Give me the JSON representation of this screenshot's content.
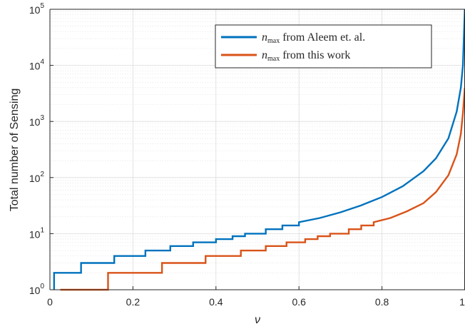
{
  "chart_data": {
    "type": "line",
    "xlabel": "ν",
    "ylabel": "Total number of Sensing",
    "xlim": [
      0,
      1
    ],
    "ylim": [
      1,
      100000
    ],
    "yscale": "log",
    "grid": true,
    "minor_grid": true,
    "legend_position": "top-right",
    "x_ticks": [
      0,
      0.2,
      0.4,
      0.6,
      0.8,
      1
    ],
    "x_tick_labels": [
      "0",
      "0.2",
      "0.4",
      "0.6",
      "0.8",
      "1"
    ],
    "y_ticks": [
      1,
      10,
      100,
      1000,
      10000,
      100000
    ],
    "y_tick_labels": [
      {
        "base": "10",
        "exp": "0"
      },
      {
        "base": "10",
        "exp": "1"
      },
      {
        "base": "10",
        "exp": "2"
      },
      {
        "base": "10",
        "exp": "3"
      },
      {
        "base": "10",
        "exp": "4"
      },
      {
        "base": "10",
        "exp": "5"
      }
    ],
    "series": [
      {
        "name": "n_max from Aleem et. al.",
        "legend_symbol": "n",
        "legend_subscript": "max",
        "legend_suffix": " from Aleem et. al.",
        "color": "#0072BD",
        "x_start": 0.01,
        "x_end": 0.9995,
        "steps": [
          {
            "x": 0.01,
            "y": 1
          },
          {
            "x": 0.01,
            "y": 2
          },
          {
            "x": 0.075,
            "y": 3
          },
          {
            "x": 0.155,
            "y": 4
          },
          {
            "x": 0.23,
            "y": 5
          },
          {
            "x": 0.29,
            "y": 6
          },
          {
            "x": 0.345,
            "y": 7
          },
          {
            "x": 0.4,
            "y": 8
          },
          {
            "x": 0.44,
            "y": 9
          },
          {
            "x": 0.47,
            "y": 10
          },
          {
            "x": 0.52,
            "y": 12
          },
          {
            "x": 0.56,
            "y": 14
          }
        ],
        "curve": [
          {
            "x": 0.6,
            "y": 16
          },
          {
            "x": 0.65,
            "y": 19
          },
          {
            "x": 0.7,
            "y": 24
          },
          {
            "x": 0.75,
            "y": 32
          },
          {
            "x": 0.8,
            "y": 45
          },
          {
            "x": 0.85,
            "y": 70
          },
          {
            "x": 0.9,
            "y": 130
          },
          {
            "x": 0.93,
            "y": 220
          },
          {
            "x": 0.96,
            "y": 500
          },
          {
            "x": 0.98,
            "y": 1500
          },
          {
            "x": 0.99,
            "y": 4000
          },
          {
            "x": 0.995,
            "y": 10000
          },
          {
            "x": 0.9995,
            "y": 100000
          }
        ]
      },
      {
        "name": "n_max from this work",
        "legend_symbol": "n",
        "legend_subscript": "max",
        "legend_suffix": " from this work",
        "color": "#D95319",
        "x_start": 0.025,
        "x_end": 0.9995,
        "steps": [
          {
            "x": 0.025,
            "y": 1
          },
          {
            "x": 0.14,
            "y": 2
          },
          {
            "x": 0.27,
            "y": 3
          },
          {
            "x": 0.375,
            "y": 4
          },
          {
            "x": 0.46,
            "y": 5
          },
          {
            "x": 0.52,
            "y": 6
          },
          {
            "x": 0.57,
            "y": 7
          },
          {
            "x": 0.615,
            "y": 8
          },
          {
            "x": 0.645,
            "y": 9
          },
          {
            "x": 0.675,
            "y": 10
          },
          {
            "x": 0.72,
            "y": 12
          },
          {
            "x": 0.75,
            "y": 14
          }
        ],
        "curve": [
          {
            "x": 0.78,
            "y": 16
          },
          {
            "x": 0.82,
            "y": 19
          },
          {
            "x": 0.86,
            "y": 25
          },
          {
            "x": 0.9,
            "y": 35
          },
          {
            "x": 0.93,
            "y": 55
          },
          {
            "x": 0.96,
            "y": 110
          },
          {
            "x": 0.98,
            "y": 260
          },
          {
            "x": 0.99,
            "y": 600
          },
          {
            "x": 0.995,
            "y": 1400
          },
          {
            "x": 0.9995,
            "y": 4000
          }
        ]
      }
    ]
  }
}
